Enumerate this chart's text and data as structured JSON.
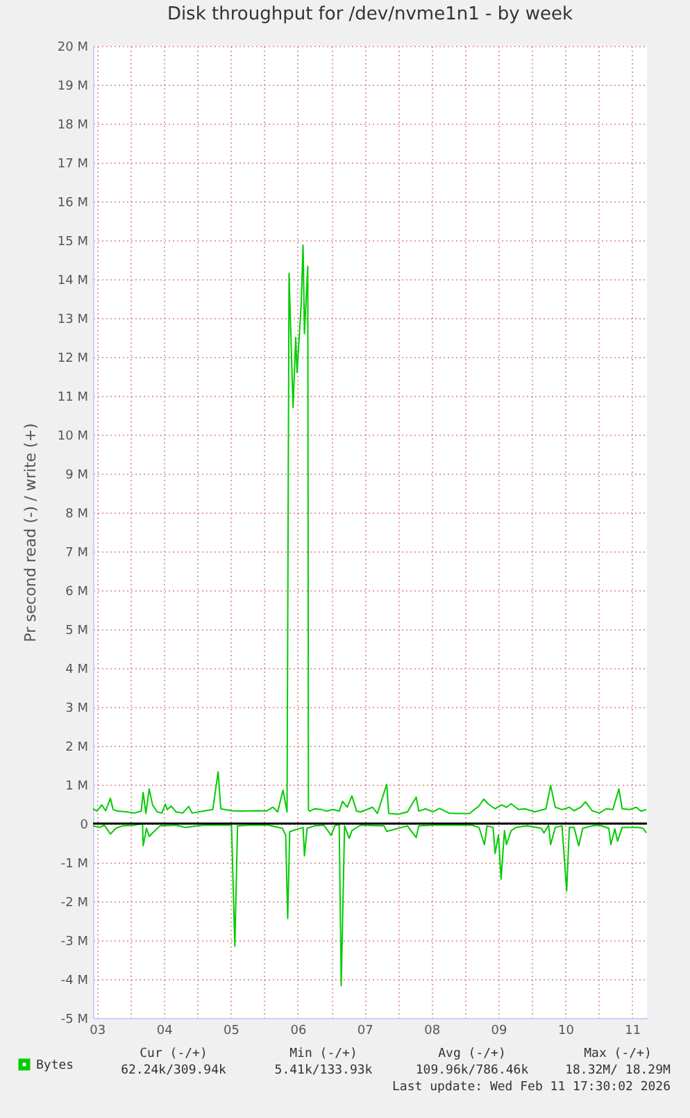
{
  "chart_data": {
    "type": "line",
    "title": "Disk throughput for /dev/nvme1n1 - by week",
    "ylabel": "Pr second read (-) / write (+)",
    "xlim": [
      3.44,
      11.72
    ],
    "xticks": [
      {
        "value": 3.5,
        "label": "03"
      },
      {
        "value": 4,
        "label": null
      },
      {
        "value": 4.5,
        "label": "04"
      },
      {
        "value": 5,
        "label": null
      },
      {
        "value": 5.5,
        "label": "05"
      },
      {
        "value": 6,
        "label": null
      },
      {
        "value": 6.5,
        "label": "06"
      },
      {
        "value": 7,
        "label": null
      },
      {
        "value": 7.5,
        "label": "07"
      },
      {
        "value": 8,
        "label": null
      },
      {
        "value": 8.5,
        "label": "08"
      },
      {
        "value": 9,
        "label": null
      },
      {
        "value": 9.5,
        "label": "09"
      },
      {
        "value": 10,
        "label": null
      },
      {
        "value": 10.5,
        "label": "10"
      },
      {
        "value": 11,
        "label": null
      },
      {
        "value": 11.5,
        "label": "11"
      }
    ],
    "ylim": [
      -5,
      20
    ],
    "yticks": [
      {
        "value": -5,
        "label": "-5 M"
      },
      {
        "value": -4,
        "label": "-4 M"
      },
      {
        "value": -3,
        "label": "-3 M"
      },
      {
        "value": -2,
        "label": "-2 M"
      },
      {
        "value": -1,
        "label": "-1 M"
      },
      0,
      {
        "value": 1,
        "label": "1 M"
      },
      {
        "value": 2,
        "label": "2 M"
      },
      {
        "value": 3,
        "label": "3 M"
      },
      {
        "value": 4,
        "label": "4 M"
      },
      {
        "value": 5,
        "label": "5 M"
      },
      {
        "value": 6,
        "label": "6 M"
      },
      {
        "value": 7,
        "label": "7 M"
      },
      {
        "value": 8,
        "label": "8 M"
      },
      {
        "value": 9,
        "label": "9 M"
      },
      {
        "value": 10,
        "label": "10 M"
      },
      {
        "value": 11,
        "label": "11 M"
      },
      {
        "value": 12,
        "label": "12 M"
      },
      {
        "value": 13,
        "label": "13 M"
      },
      {
        "value": 14,
        "label": "14 M"
      },
      {
        "value": 15,
        "label": "15 M"
      },
      {
        "value": 16,
        "label": "16 M"
      },
      {
        "value": 17,
        "label": "17 M"
      },
      {
        "value": 18,
        "label": "18 M"
      },
      {
        "value": 19,
        "label": "19 M"
      },
      {
        "value": 20,
        "label": "20 M"
      }
    ],
    "grid": true,
    "legend": "bottom left",
    "line_style": "solid",
    "marker": "none",
    "ref_lines": [
      {
        "axis": "y",
        "value": 0,
        "color": "#000000"
      }
    ],
    "series": [
      {
        "name": "Bytes",
        "color": "#00cc00",
        "x": [
          3.44,
          3.5,
          3.57,
          3.63,
          3.7,
          3.74,
          3.81,
          3.95,
          4.06,
          4.16,
          4.19,
          4.23,
          4.28,
          4.33,
          4.4,
          4.47,
          4.52,
          4.55,
          4.61,
          4.68,
          4.78,
          4.87,
          4.92,
          5.09,
          5.23,
          5.31,
          5.35,
          5.51,
          5.65,
          5.92,
          6.03,
          6.13,
          6.2,
          6.28,
          6.34,
          6.37,
          6.43,
          6.47,
          6.49,
          6.55,
          6.58,
          6.6,
          6.65,
          6.66,
          6.68,
          6.75,
          6.86,
          6.93,
          7.03,
          7.12,
          7.17,
          7.24,
          7.31,
          7.38,
          7.44,
          7.62,
          7.69,
          7.83,
          7.86,
          8.0,
          8.14,
          8.27,
          8.31,
          8.41,
          8.52,
          8.62,
          8.76,
          8.9,
          9.07,
          9.14,
          9.21,
          9.28,
          9.35,
          9.45,
          9.55,
          9.62,
          9.69,
          9.8,
          9.9,
          10.04,
          10.21,
          10.28,
          10.35,
          10.45,
          10.56,
          10.63,
          10.73,
          10.8,
          10.9,
          11.01,
          11.11,
          11.21,
          11.3,
          11.35,
          11.46,
          11.56,
          11.63,
          11.71
        ],
        "values": [
          0.38,
          0.32,
          0.48,
          0.33,
          0.65,
          0.36,
          0.32,
          0.3,
          0.27,
          0.32,
          0.8,
          0.26,
          0.89,
          0.48,
          0.3,
          0.27,
          0.5,
          0.36,
          0.45,
          0.3,
          0.27,
          0.44,
          0.27,
          0.32,
          0.36,
          1.33,
          0.38,
          0.33,
          0.32,
          0.33,
          0.32,
          0.42,
          0.3,
          0.86,
          0.3,
          14.15,
          10.7,
          12.5,
          11.6,
          13.3,
          14.87,
          12.6,
          14.33,
          0.35,
          0.32,
          0.38,
          0.36,
          0.32,
          0.36,
          0.32,
          0.57,
          0.42,
          0.71,
          0.32,
          0.3,
          0.42,
          0.26,
          1.01,
          0.26,
          0.24,
          0.3,
          0.68,
          0.32,
          0.38,
          0.3,
          0.39,
          0.27,
          0.26,
          0.26,
          0.36,
          0.45,
          0.63,
          0.5,
          0.38,
          0.48,
          0.42,
          0.51,
          0.36,
          0.38,
          0.3,
          0.38,
          0.98,
          0.42,
          0.36,
          0.42,
          0.33,
          0.42,
          0.56,
          0.33,
          0.27,
          0.38,
          0.36,
          0.89,
          0.38,
          0.36,
          0.42,
          0.32,
          0.36
        ]
      },
      {
        "color": "#00cc00",
        "x": [
          3.44,
          3.54,
          3.61,
          3.7,
          3.78,
          3.88,
          4.06,
          4.18,
          4.19,
          4.24,
          4.28,
          4.33,
          4.44,
          4.68,
          4.82,
          5.09,
          5.51,
          5.56,
          5.6,
          5.78,
          6.06,
          6.27,
          6.32,
          6.35,
          6.38,
          6.48,
          6.58,
          6.6,
          6.64,
          6.75,
          6.89,
          7.0,
          7.06,
          7.12,
          7.15,
          7.2,
          7.27,
          7.31,
          7.44,
          7.79,
          7.83,
          8.14,
          8.27,
          8.31,
          8.55,
          8.83,
          9.1,
          9.21,
          9.29,
          9.33,
          9.42,
          9.45,
          9.5,
          9.54,
          9.59,
          9.62,
          9.69,
          9.76,
          9.93,
          10.14,
          10.18,
          10.25,
          10.28,
          10.35,
          10.45,
          10.52,
          10.56,
          10.63,
          10.7,
          10.76,
          10.9,
          11.01,
          11.15,
          11.18,
          11.24,
          11.28,
          11.35,
          11.53,
          11.59,
          11.66,
          11.71
        ],
        "values": [
          -0.06,
          -0.1,
          -0.04,
          -0.27,
          -0.12,
          -0.06,
          -0.04,
          0,
          -0.57,
          -0.12,
          -0.33,
          -0.24,
          -0.06,
          -0.04,
          -0.1,
          -0.04,
          -0.04,
          -3.15,
          -0.06,
          -0.04,
          -0.04,
          -0.12,
          -0.3,
          -2.44,
          -0.21,
          -0.15,
          -0.1,
          -0.83,
          -0.12,
          -0.06,
          -0.04,
          -0.3,
          -0.04,
          -0.04,
          -4.17,
          -0.06,
          -0.38,
          -0.18,
          -0.04,
          -0.06,
          -0.2,
          -0.06,
          -0.36,
          -0.06,
          -0.04,
          -0.04,
          -0.04,
          -0.1,
          -0.54,
          -0.06,
          -0.1,
          -0.77,
          -0.3,
          -1.43,
          -0.18,
          -0.54,
          -0.18,
          -0.1,
          -0.06,
          -0.12,
          -0.24,
          -0.04,
          -0.54,
          -0.1,
          -0.06,
          -1.73,
          -0.1,
          -0.1,
          -0.57,
          -0.12,
          -0.06,
          -0.04,
          -0.12,
          -0.54,
          -0.14,
          -0.45,
          -0.1,
          -0.1,
          -0.1,
          -0.12,
          -0.24
        ]
      }
    ],
    "annotations": [
      "Cur (-/+)",
      "Min (-/+)",
      "Avg (-/+)",
      "Max (-/+)",
      "62.24k/309.94k",
      "5.41k/133.93k",
      "109.96k/786.46k",
      "18.32M/ 18.29M",
      "Last update: Wed Feb 11 17:30:02 2026"
    ]
  }
}
